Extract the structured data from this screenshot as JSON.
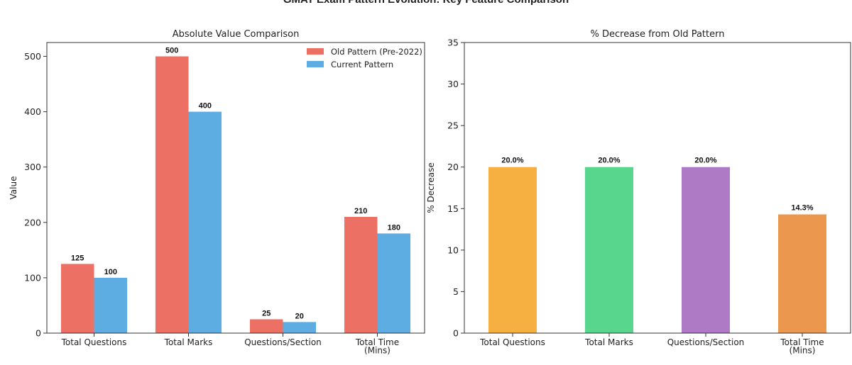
{
  "figure": {
    "title": "GMAT Exam Pattern Evolution: Key Feature Comparison"
  },
  "chart_data": [
    {
      "type": "bar",
      "title": "Absolute Value Comparison",
      "xlabel": "",
      "ylabel": "Value",
      "categories": [
        "Total Questions",
        "Total Marks",
        "Questions/Section",
        "Total Time\n(Mins)"
      ],
      "series": [
        {
          "name": "Old Pattern (Pre-2022)",
          "color": "#ec7063",
          "values": [
            125,
            500,
            25,
            210
          ],
          "labels": [
            "125",
            "500",
            "25",
            "210"
          ]
        },
        {
          "name": "Current Pattern",
          "color": "#5dade2",
          "values": [
            100,
            400,
            20,
            180
          ],
          "labels": [
            "100",
            "400",
            "20",
            "180"
          ]
        }
      ],
      "ylim": [
        0,
        525
      ],
      "yticks": [
        0,
        100,
        200,
        300,
        400,
        500
      ],
      "legend": "top-right",
      "grid": false
    },
    {
      "type": "bar",
      "title": "% Decrease from Old Pattern",
      "xlabel": "",
      "ylabel": "% Decrease",
      "categories": [
        "Total Questions",
        "Total Marks",
        "Questions/Section",
        "Total Time\n(Mins)"
      ],
      "values": [
        20.0,
        20.0,
        20.0,
        14.3
      ],
      "labels": [
        "20.0%",
        "20.0%",
        "20.0%",
        "14.3%"
      ],
      "colors": [
        "#f5b041",
        "#58d68d",
        "#af7ac5",
        "#eb984e"
      ],
      "ylim": [
        0,
        35
      ],
      "yticks": [
        0,
        5,
        10,
        15,
        20,
        25,
        30,
        35
      ],
      "grid": false
    }
  ]
}
